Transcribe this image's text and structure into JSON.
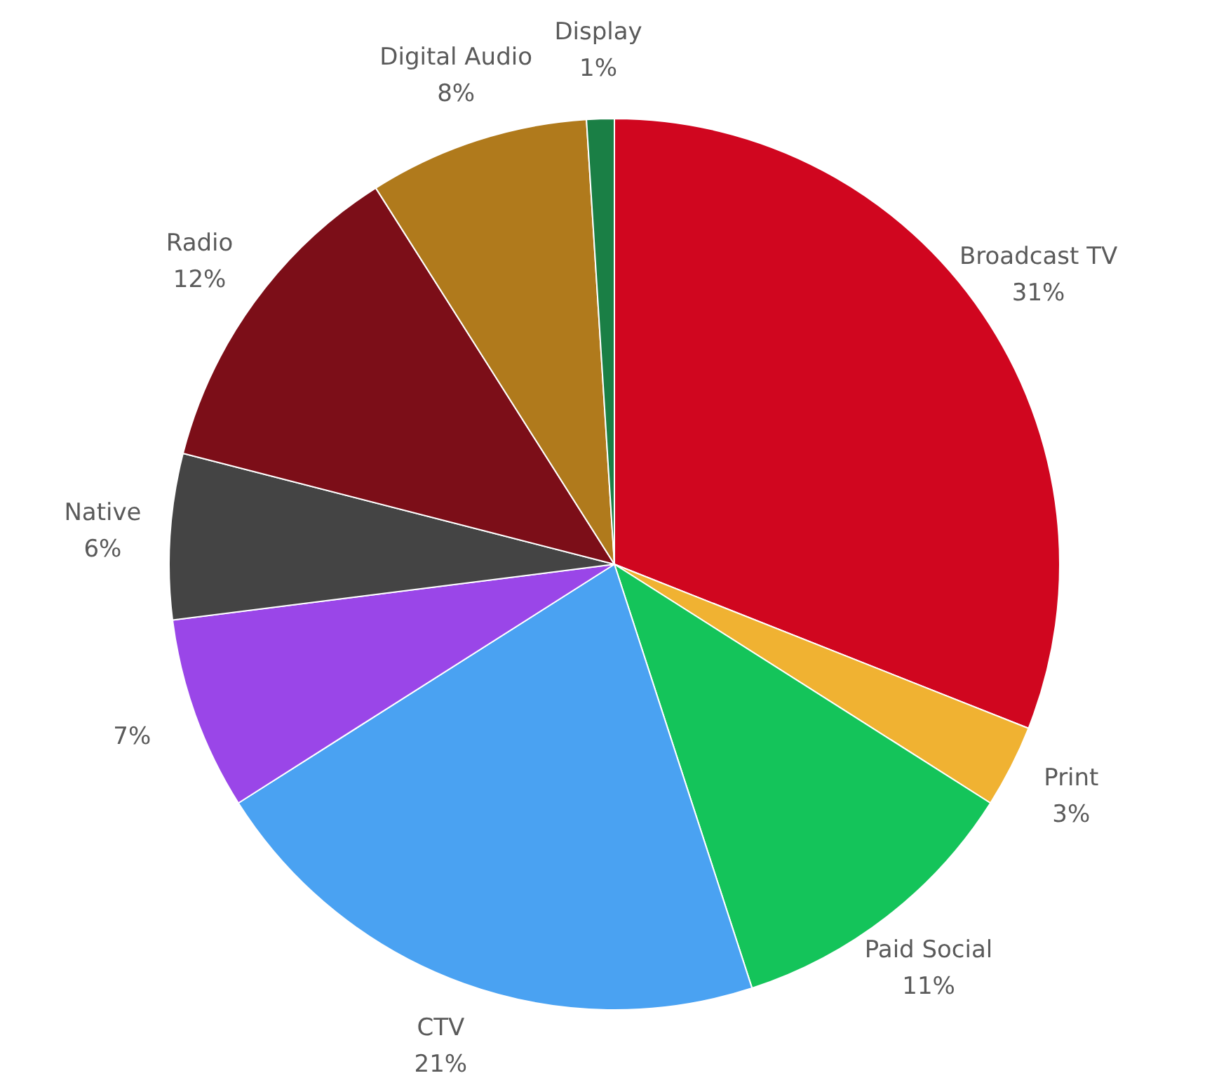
{
  "chart_data": {
    "type": "pie",
    "categories": [
      "Broadcast TV",
      "Print",
      "Paid Social",
      "CTV",
      null,
      "Native",
      "Radio",
      "Digital Audio",
      "Display"
    ],
    "values": [
      31,
      3,
      11,
      21,
      7,
      6,
      12,
      8,
      1
    ],
    "value_labels": [
      "31%",
      "3%",
      "11%",
      "21%",
      "7%",
      "6%",
      "12%",
      "8%",
      "1%"
    ],
    "colors": [
      "#d0061f",
      "#f0b232",
      "#14c45a",
      "#4aa2f2",
      "#9a46e8",
      "#444444",
      "#7c0e18",
      "#b07a1c",
      "#1a7f45"
    ],
    "legend": false
  }
}
